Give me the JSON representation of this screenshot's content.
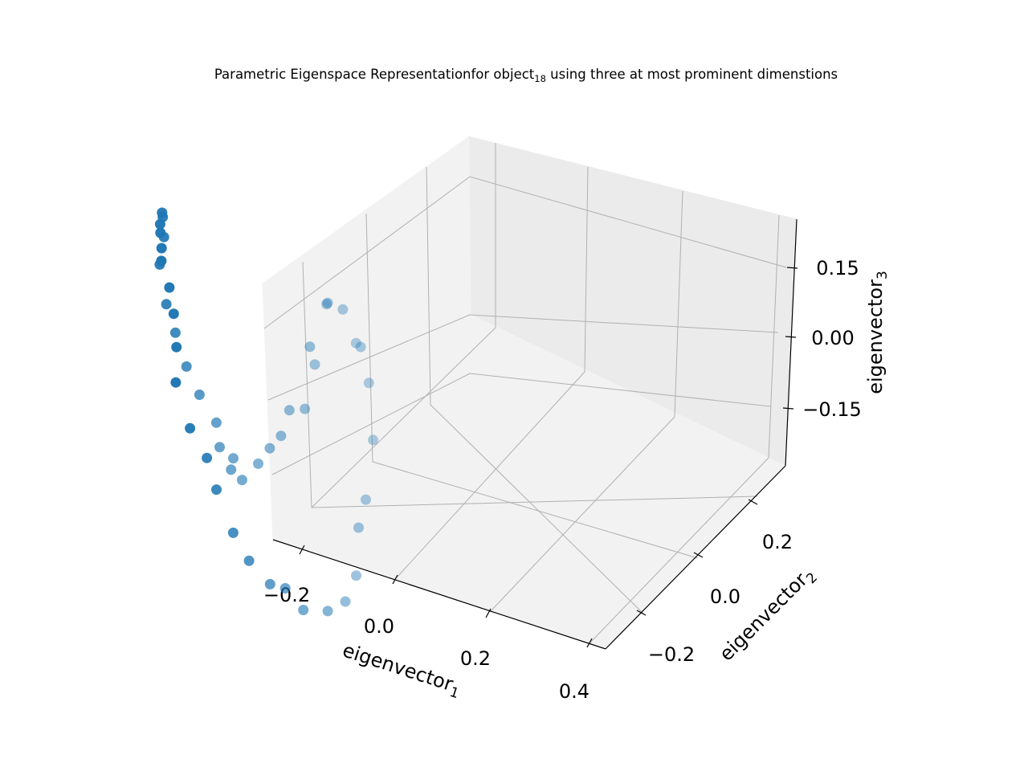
{
  "chart_data": {
    "type": "scatter",
    "projection": "3d",
    "title": {
      "main": "Parametric Eigenspace Representationfor object",
      "sub": "18",
      "rest": " using three at most prominent dimenstions"
    },
    "xlabel": {
      "main": "eigenvector",
      "sub": "1"
    },
    "ylabel": {
      "main": "eigenvector",
      "sub": "2"
    },
    "zlabel": {
      "main": "eigenvector",
      "sub": "3"
    },
    "xticks": [
      "−0.2",
      "0.0",
      "0.2",
      "0.4"
    ],
    "yticks": [
      "−0.2",
      "0.0",
      "0.2"
    ],
    "zticks": [
      "−0.15",
      "0.00",
      "0.15"
    ],
    "xlim": [
      -0.26,
      0.44
    ],
    "ylim": [
      -0.38,
      0.38
    ],
    "zlim": [
      -0.26,
      0.22
    ],
    "grid": true,
    "marker_color": "#1f77b4",
    "pane_colors": [
      "#f2f2f2",
      "#ebebeb",
      "#e6e6e6"
    ],
    "grid_color": "#b0b0b0",
    "points": [
      {
        "x": -0.2,
        "y": 0.16,
        "z": -0.155
      },
      {
        "x": -0.213,
        "y": 0.13,
        "z": -0.11
      },
      {
        "x": -0.219,
        "y": 0.102,
        "z": -0.064
      },
      {
        "x": -0.219,
        "y": 0.072,
        "z": -0.009
      },
      {
        "x": -0.218,
        "y": 0.046,
        "z": 0.038
      },
      {
        "x": -0.207,
        "y": 0.015,
        "z": 0.103
      },
      {
        "x": -0.198,
        "y": 0.015,
        "z": 0.137
      },
      {
        "x": -0.19,
        "y": 0.002,
        "z": 0.169
      },
      {
        "x": -0.167,
        "y": -0.027,
        "z": 0.195
      },
      {
        "x": -0.149,
        "y": -0.053,
        "z": 0.2
      },
      {
        "x": -0.131,
        "y": -0.073,
        "z": 0.205
      },
      {
        "x": -0.112,
        "y": -0.092,
        "z": 0.202
      },
      {
        "x": -0.102,
        "y": -0.104,
        "z": 0.196
      },
      {
        "x": -0.074,
        "y": -0.115,
        "z": 0.178
      },
      {
        "x": -0.057,
        "y": -0.123,
        "z": 0.156
      },
      {
        "x": -0.04,
        "y": -0.135,
        "z": 0.128
      },
      {
        "x": -0.028,
        "y": -0.15,
        "z": 0.098
      },
      {
        "x": 0.005,
        "y": -0.15,
        "z": 0.053
      },
      {
        "x": 0.041,
        "y": -0.147,
        "z": 0.026
      },
      {
        "x": 0.053,
        "y": -0.135,
        "z": -0.014
      },
      {
        "x": 0.09,
        "y": -0.133,
        "z": -0.056
      },
      {
        "x": 0.121,
        "y": -0.127,
        "z": -0.084
      },
      {
        "x": 0.152,
        "y": -0.107,
        "z": -0.114
      },
      {
        "x": 0.182,
        "y": -0.102,
        "z": -0.114
      },
      {
        "x": 0.23,
        "y": -0.11,
        "z": -0.123
      },
      {
        "x": 0.263,
        "y": -0.084,
        "z": -0.13
      },
      {
        "x": 0.282,
        "y": -0.06,
        "z": -0.127
      },
      {
        "x": 0.283,
        "y": -0.033,
        "z": -0.111
      },
      {
        "x": 0.273,
        "y": -0.016,
        "z": -0.067
      },
      {
        "x": 0.27,
        "y": 0.006,
        "z": -0.047
      },
      {
        "x": 0.259,
        "y": 0.037,
        "z": 0.003
      },
      {
        "x": 0.233,
        "y": 0.055,
        "z": 0.053
      },
      {
        "x": 0.207,
        "y": 0.063,
        "z": 0.084
      },
      {
        "x": 0.17,
        "y": 0.094,
        "z": 0.063
      },
      {
        "x": 0.115,
        "y": 0.123,
        "z": 0.073
      },
      {
        "x": 0.078,
        "y": 0.126,
        "z": 0.07
      },
      {
        "x": 0.055,
        "y": 0.15,
        "z": 0.05
      },
      {
        "x": 0.037,
        "y": 0.128,
        "z": 0.008
      },
      {
        "x": 0.01,
        "y": 0.173,
        "z": -0.043
      },
      {
        "x": 0.003,
        "y": 0.156,
        "z": -0.087
      },
      {
        "x": -0.049,
        "y": 0.176,
        "z": -0.112
      },
      {
        "x": -0.058,
        "y": 0.165,
        "z": -0.138
      },
      {
        "x": -0.085,
        "y": 0.167,
        "z": -0.16
      },
      {
        "x": -0.115,
        "y": 0.172,
        "z": -0.188
      },
      {
        "x": -0.14,
        "y": 0.159,
        "z": -0.206
      },
      {
        "x": -0.166,
        "y": 0.16,
        "z": -0.201
      },
      {
        "x": -0.173,
        "y": 0.174,
        "z": -0.197
      },
      {
        "x": -0.187,
        "y": 0.154,
        "z": -0.177
      }
    ]
  }
}
